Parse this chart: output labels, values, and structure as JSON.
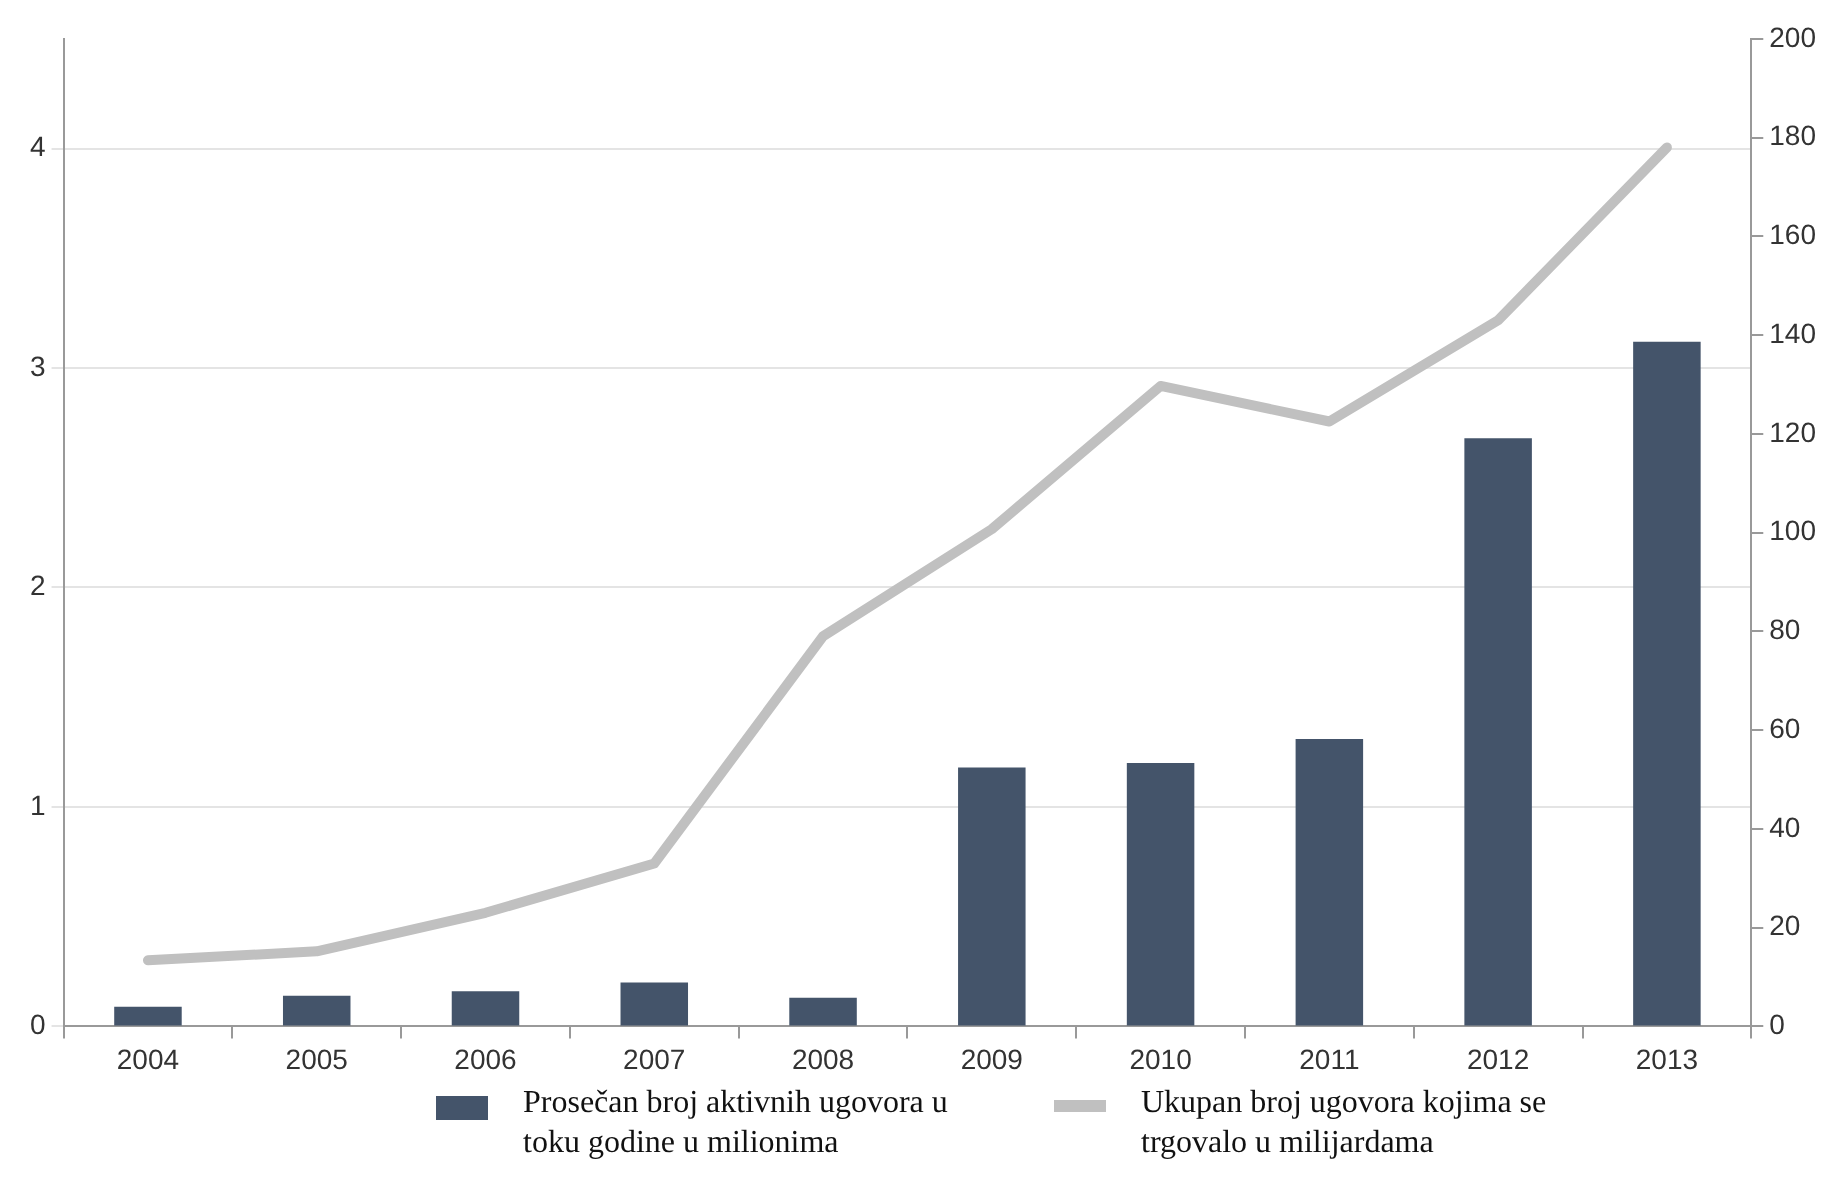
{
  "chart_data": {
    "type": "bar",
    "categories": [
      "2004",
      "2005",
      "2006",
      "2007",
      "2008",
      "2009",
      "2010",
      "2011",
      "2012",
      "2013"
    ],
    "series": [
      {
        "name": "Prosečan broj aktivnih ugovora u toku godine u milionima",
        "color": "#44546a",
        "values": [
          0.09,
          0.14,
          0.16,
          0.2,
          0.13,
          1.18,
          1.2,
          1.31,
          2.68,
          3.12
        ]
      },
      {
        "name": "Ukupan broj ugovora kojima se trgovalo u milijardama",
        "type": "line",
        "axis": "y2",
        "color": "#c0c0c0",
        "values": [
          13.4,
          15.2,
          23,
          33,
          79,
          100.7,
          129.7,
          122.5,
          143,
          178
        ]
      }
    ],
    "ylim": [
      0,
      4.5
    ],
    "yticks": [
      0,
      1,
      2,
      3,
      4
    ],
    "y2lim": [
      0,
      200
    ],
    "y2ticks": [
      0,
      20,
      40,
      60,
      80,
      100,
      120,
      140,
      160,
      180,
      200
    ],
    "grid": "y",
    "legend": "bottom",
    "marker": "none"
  }
}
